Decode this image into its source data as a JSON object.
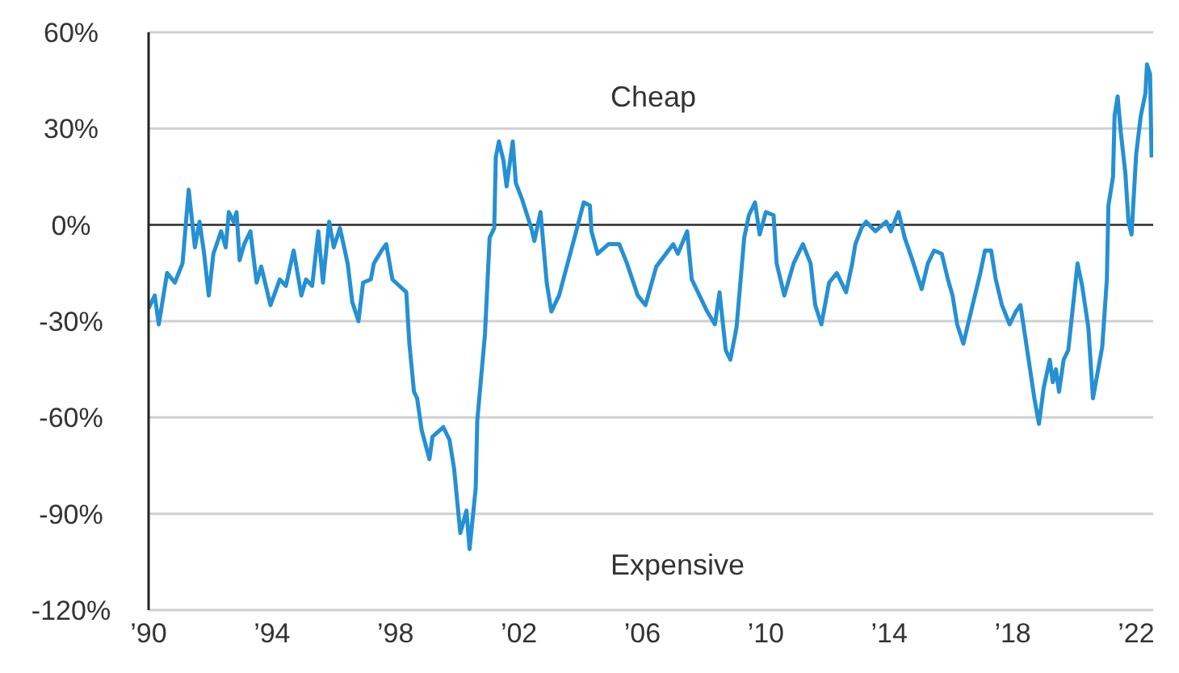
{
  "chart_data": {
    "type": "line",
    "annotations": [
      "Cheap",
      "Expensive"
    ],
    "x": [
      1990.0,
      1990.2,
      1990.33,
      1990.6,
      1990.85,
      1991.1,
      1991.3,
      1991.5,
      1991.65,
      1991.8,
      1991.95,
      1992.1,
      1992.35,
      1992.5,
      1992.6,
      1992.75,
      1992.85,
      1992.95,
      1993.1,
      1993.3,
      1993.5,
      1993.65,
      1993.95,
      1994.25,
      1994.45,
      1994.7,
      1994.95,
      1995.1,
      1995.3,
      1995.5,
      1995.65,
      1995.85,
      1996.0,
      1996.2,
      1996.45,
      1996.6,
      1996.8,
      1996.95,
      1997.2,
      1997.3,
      1997.55,
      1997.7,
      1997.9,
      1998.35,
      1998.45,
      1998.6,
      1998.7,
      1998.85,
      1999.1,
      1999.2,
      1999.55,
      1999.75,
      1999.9,
      2000.1,
      2000.3,
      2000.4,
      2000.6,
      2000.65,
      2000.9,
      2001.05,
      2001.2,
      2001.25,
      2001.35,
      2001.5,
      2001.6,
      2001.8,
      2001.9,
      2002.1,
      2002.4,
      2002.5,
      2002.7,
      2002.9,
      2003.05,
      2003.3,
      2003.55,
      2003.8,
      2004.1,
      2004.3,
      2004.35,
      2004.55,
      2004.9,
      2005.25,
      2005.5,
      2005.85,
      2006.1,
      2006.45,
      2007.0,
      2007.15,
      2007.45,
      2007.6,
      2007.85,
      2008.1,
      2008.35,
      2008.5,
      2008.7,
      2008.85,
      2009.05,
      2009.3,
      2009.45,
      2009.65,
      2009.8,
      2010.0,
      2010.25,
      2010.35,
      2010.6,
      2010.9,
      2011.2,
      2011.45,
      2011.6,
      2011.8,
      2012.05,
      2012.3,
      2012.6,
      2012.8,
      2012.9,
      2013.1,
      2013.25,
      2013.55,
      2013.9,
      2014.05,
      2014.3,
      2014.5,
      2014.75,
      2015.05,
      2015.25,
      2015.45,
      2015.7,
      2015.9,
      2016.05,
      2016.2,
      2016.4,
      2016.6,
      2016.75,
      2016.95,
      2017.1,
      2017.3,
      2017.45,
      2017.65,
      2017.9,
      2018.1,
      2018.25,
      2018.5,
      2018.7,
      2018.85,
      2019.0,
      2019.2,
      2019.3,
      2019.4,
      2019.5,
      2019.65,
      2019.8,
      2020.1,
      2020.25,
      2020.45,
      2020.6,
      2020.9,
      2021.05,
      2021.1,
      2021.25,
      2021.3,
      2021.4,
      2021.5,
      2021.65,
      2021.75,
      2021.85,
      2022.0,
      2022.15,
      2022.3,
      2022.35,
      2022.45,
      2022.5
    ],
    "series": [
      {
        "color": "#2590d3",
        "values": [
          -26,
          -22,
          -31,
          -15,
          -18,
          -12,
          11,
          -7,
          1,
          -9,
          -22,
          -9,
          -2,
          -7,
          4,
          1,
          4,
          -11,
          -6,
          -2,
          -18,
          -13,
          -25,
          -17,
          -19,
          -8,
          -22,
          -17,
          -19,
          -2,
          -18,
          1,
          -7,
          -1,
          -12,
          -24,
          -30,
          -18,
          -17,
          -12,
          -8,
          -6,
          -17,
          -21,
          -37,
          -52,
          -54,
          -64,
          -73,
          -66,
          -63,
          -67,
          -76,
          -96,
          -89,
          -101,
          -82,
          -61,
          -34,
          -4,
          -1,
          21,
          26,
          20,
          12,
          26,
          13,
          8,
          -1,
          -5,
          4,
          -18,
          -27,
          -22,
          -13,
          -4,
          7,
          6,
          -2,
          -9,
          -6,
          -6,
          -12,
          -22,
          -25,
          -13,
          -6,
          -9,
          -2,
          -17,
          -22,
          -27,
          -31,
          -21,
          -39,
          -42,
          -32,
          -4,
          3,
          7,
          -3,
          4,
          3,
          -12,
          -22,
          -12,
          -6,
          -12,
          -25,
          -31,
          -18,
          -15,
          -21,
          -12,
          -6,
          -1,
          1,
          -2,
          1,
          -2,
          4,
          -4,
          -11,
          -20,
          -12,
          -8,
          -9,
          -17,
          -22,
          -31,
          -37,
          -29,
          -23,
          -15,
          -8,
          -8,
          -17,
          -25,
          -31,
          -27,
          -25,
          -41,
          -54,
          -62,
          -51,
          -42,
          -49,
          -45,
          -52,
          -42,
          -39,
          -12,
          -19,
          -32,
          -54,
          -38,
          -17,
          6,
          15,
          34,
          40,
          29,
          16,
          1,
          -3,
          22,
          34,
          41,
          50,
          47,
          21
        ]
      }
    ],
    "xlim": [
      1990,
      2022.55
    ],
    "xticks": [
      {
        "value": 1990,
        "label": "’90"
      },
      {
        "value": 1994,
        "label": "’94"
      },
      {
        "value": 1998,
        "label": "’98"
      },
      {
        "value": 2002,
        "label": "’02"
      },
      {
        "value": 2006,
        "label": "’06"
      },
      {
        "value": 2010,
        "label": "’10"
      },
      {
        "value": 2014,
        "label": "’14"
      },
      {
        "value": 2018,
        "label": "’18"
      },
      {
        "value": 2022,
        "label": "’22"
      }
    ],
    "ylim": [
      -120,
      60
    ],
    "yticks": [
      {
        "value": -120,
        "label": "-120%"
      },
      {
        "value": -90,
        "label": "-90%"
      },
      {
        "value": -60,
        "label": "-60%"
      },
      {
        "value": -30,
        "label": "-30%"
      },
      {
        "value": 0,
        "label": "0%"
      },
      {
        "value": 30,
        "label": "30%"
      },
      {
        "value": 60,
        "label": "60%"
      }
    ],
    "ref_lines": [
      {
        "axis": "y",
        "value": 0,
        "color": "#222222"
      }
    ],
    "grid": "y",
    "marker": "none",
    "line_style": "solid"
  }
}
